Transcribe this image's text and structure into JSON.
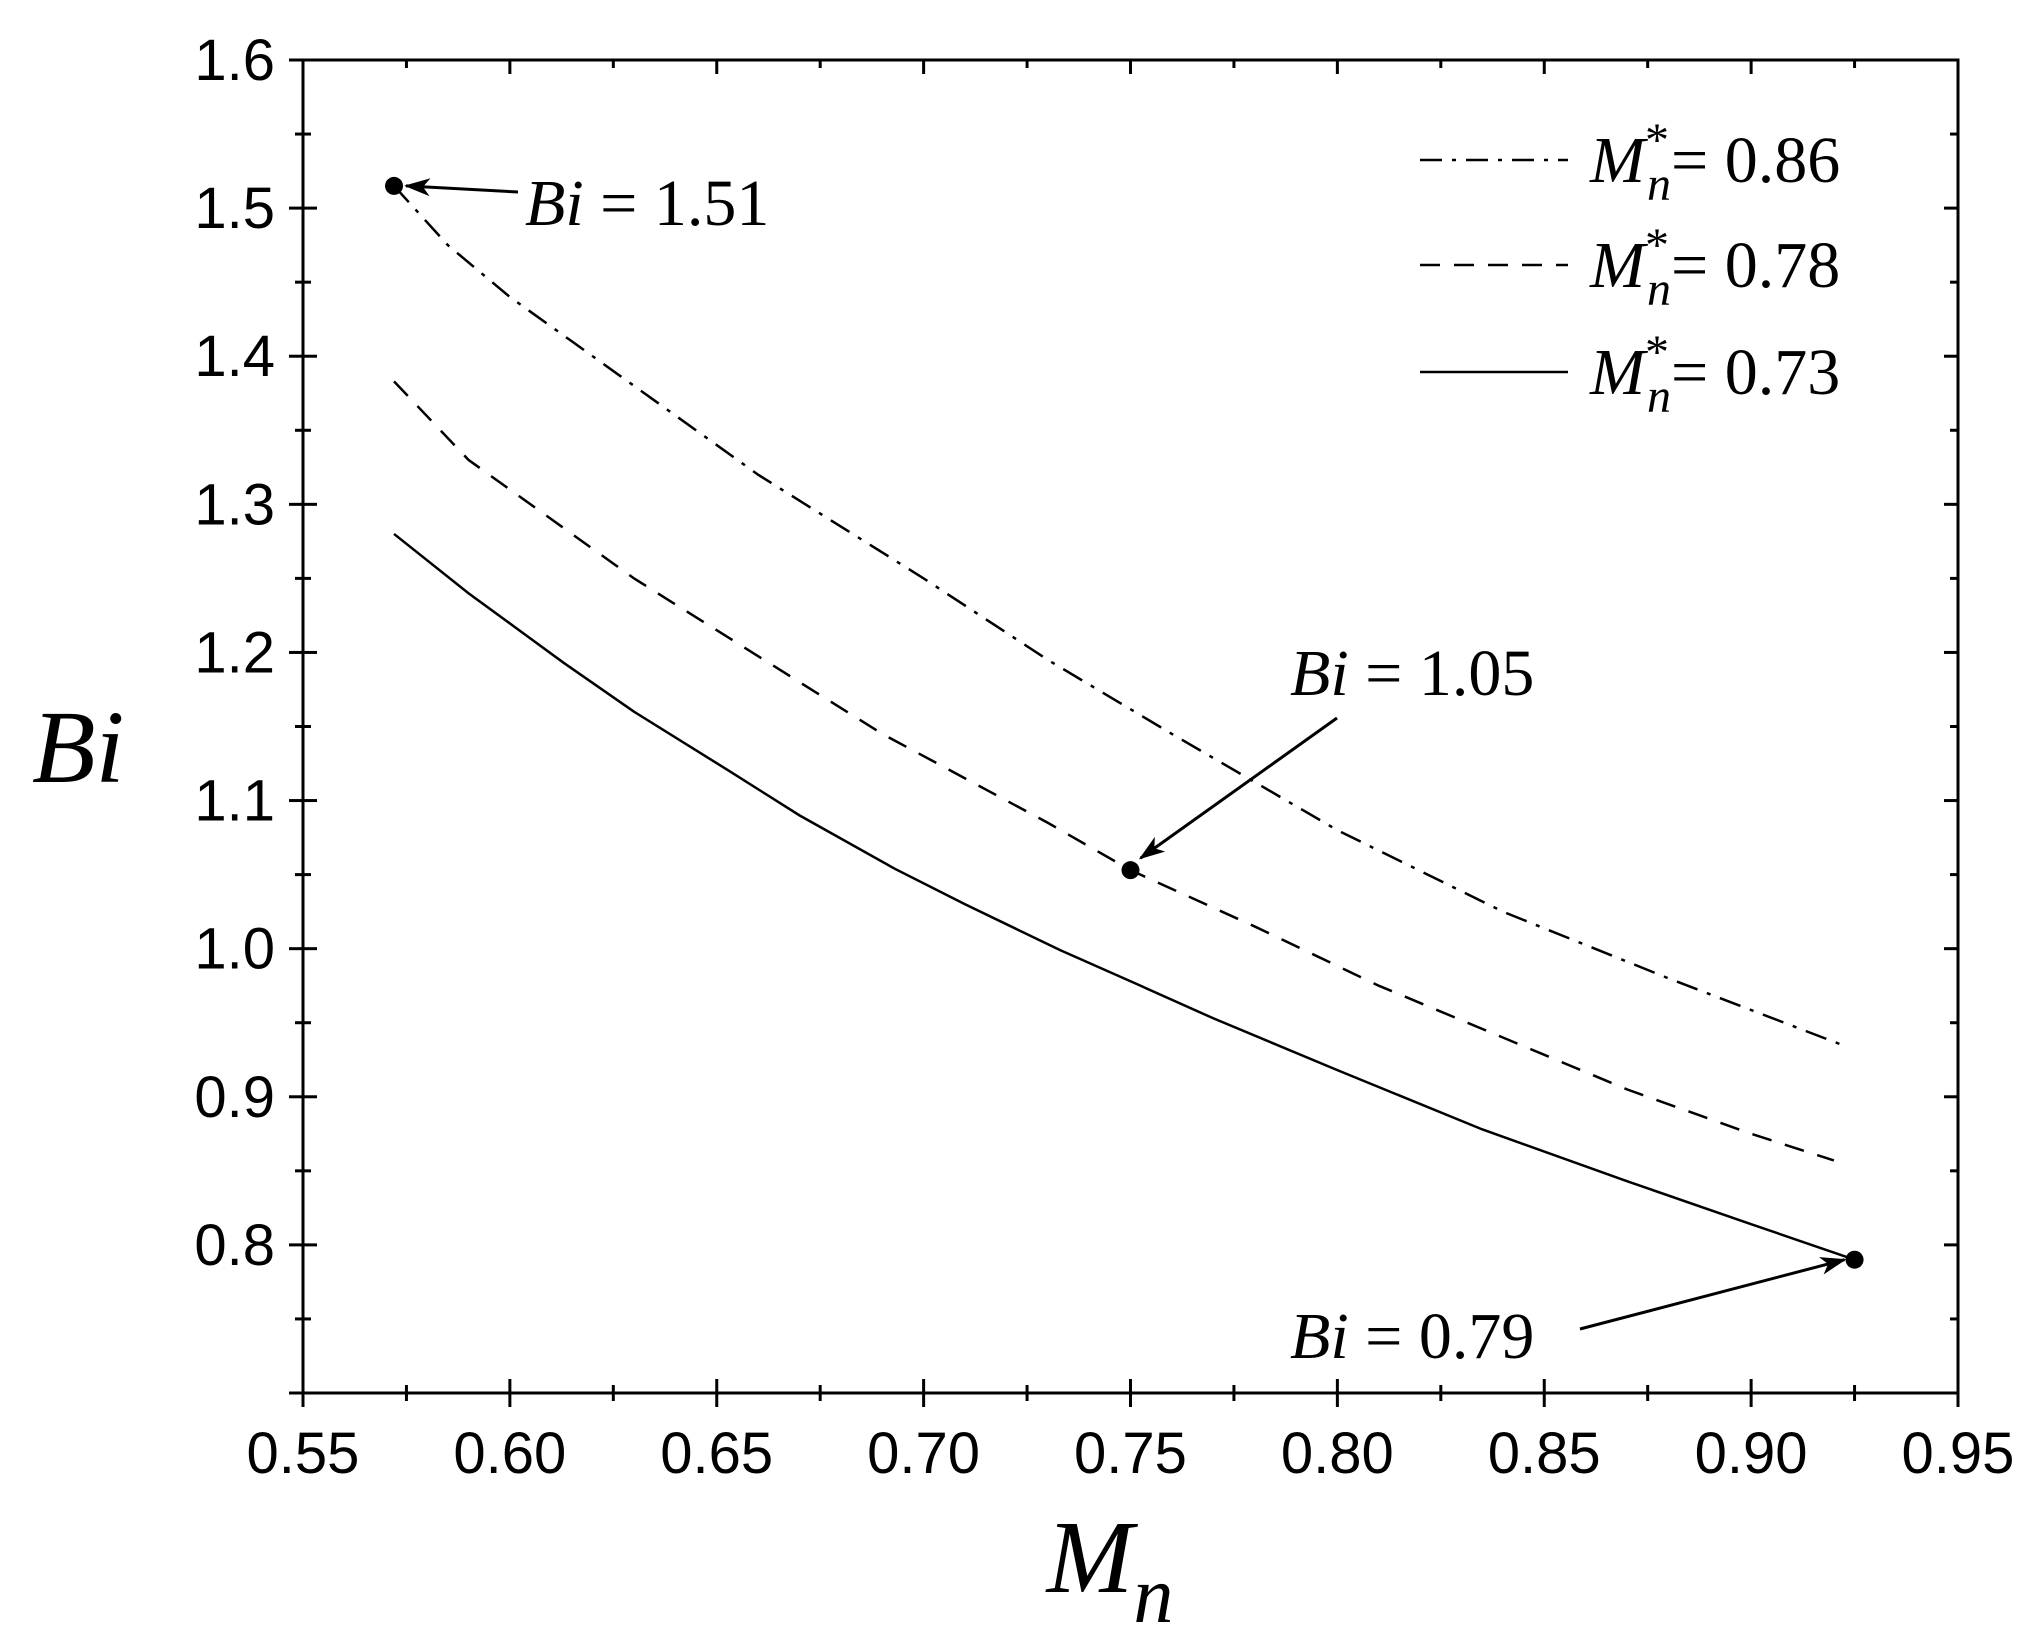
{
  "chart_data": {
    "type": "line",
    "xlabel": "M",
    "xlabel_sub": "n",
    "ylabel": "Bi",
    "xlim": [
      0.55,
      0.95
    ],
    "ylim": [
      0.7,
      1.6
    ],
    "x_ticks": [
      "0.55",
      "0.60",
      "0.65",
      "0.70",
      "0.75",
      "0.80",
      "0.85",
      "0.90",
      "0.95"
    ],
    "y_ticks": [
      "0.8",
      "0.9",
      "1.0",
      "1.1",
      "1.2",
      "1.3",
      "1.4",
      "1.5",
      "1.6"
    ],
    "legend_position": "top-right",
    "series": [
      {
        "name": "0.86",
        "line_style": "dash-dot",
        "x": [
          0.572,
          0.585,
          0.6,
          0.615,
          0.64,
          0.66,
          0.68,
          0.7,
          0.73,
          0.76,
          0.8,
          0.84,
          0.88,
          0.922
        ],
        "y": [
          1.515,
          1.475,
          1.44,
          1.41,
          1.36,
          1.32,
          1.285,
          1.25,
          1.195,
          1.145,
          1.08,
          1.025,
          0.98,
          0.935
        ]
      },
      {
        "name": "0.78",
        "line_style": "dashed",
        "x": [
          0.572,
          0.59,
          0.61,
          0.63,
          0.65,
          0.67,
          0.69,
          0.71,
          0.73,
          0.75,
          0.78,
          0.81,
          0.84,
          0.87,
          0.9,
          0.92
        ],
        "y": [
          1.383,
          1.33,
          1.29,
          1.25,
          1.215,
          1.18,
          1.145,
          1.115,
          1.085,
          1.053,
          1.015,
          0.975,
          0.94,
          0.905,
          0.875,
          0.857
        ]
      },
      {
        "name": "0.73",
        "line_style": "solid",
        "x": [
          0.572,
          0.59,
          0.613,
          0.63,
          0.653,
          0.67,
          0.693,
          0.71,
          0.733,
          0.75,
          0.77,
          0.8,
          0.835,
          0.87,
          0.9,
          0.925
        ],
        "y": [
          1.28,
          1.24,
          1.193,
          1.16,
          1.12,
          1.09,
          1.054,
          1.03,
          0.999,
          0.978,
          0.953,
          0.918,
          0.878,
          0.843,
          0.814,
          0.79
        ]
      }
    ],
    "annotations": [
      {
        "text": "1.51",
        "prefix": "Bi",
        "point": [
          0.572,
          1.515
        ]
      },
      {
        "text": "1.05",
        "prefix": "Bi",
        "point": [
          0.75,
          1.053
        ]
      },
      {
        "text": "0.79",
        "prefix": "Bi",
        "point": [
          0.925,
          0.79
        ]
      }
    ],
    "legend_prefix": "M",
    "legend_sub": "n",
    "legend_sup": "*"
  }
}
